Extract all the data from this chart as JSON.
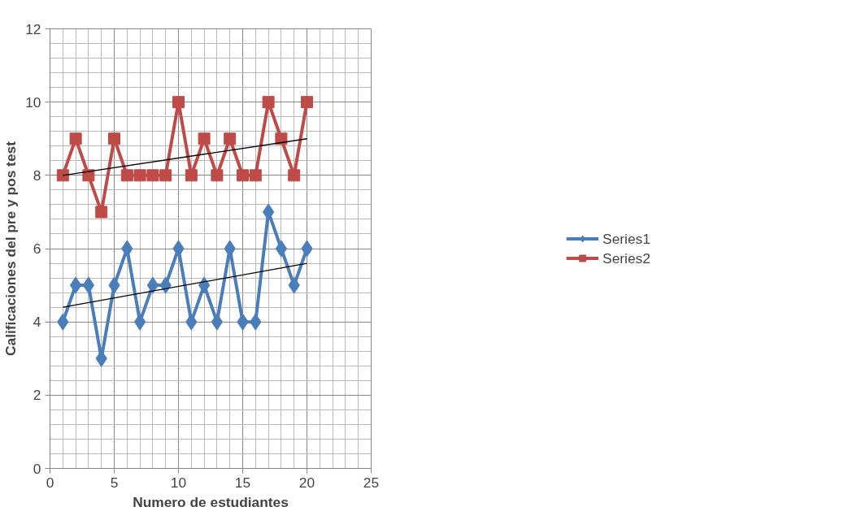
{
  "chart_data": {
    "type": "line",
    "xlabel": "Numero de estudiantes",
    "ylabel": "Calificaciones del pre y pos test",
    "xlim": [
      0,
      25
    ],
    "xticks": [
      0,
      5,
      10,
      15,
      20,
      25
    ],
    "ylim": [
      0,
      12
    ],
    "yticks": [
      0,
      2,
      4,
      6,
      8,
      10,
      12
    ],
    "grid": true,
    "legend": "right",
    "series": [
      {
        "name": "Series1",
        "color": "#4a7ebb",
        "marker": "diamond",
        "x": [
          1,
          2,
          3,
          4,
          5,
          6,
          7,
          8,
          9,
          10,
          11,
          12,
          13,
          14,
          15,
          16,
          17,
          18,
          19,
          20
        ],
        "values": [
          4,
          5,
          5,
          3,
          5,
          6,
          4,
          5,
          5,
          6,
          4,
          5,
          4,
          6,
          4,
          4,
          7,
          6,
          5,
          6
        ]
      },
      {
        "name": "Series2",
        "color": "#be4b48",
        "marker": "square",
        "x": [
          1,
          2,
          3,
          4,
          5,
          6,
          7,
          8,
          9,
          10,
          11,
          12,
          13,
          14,
          15,
          16,
          17,
          18,
          19,
          20
        ],
        "values": [
          8,
          9,
          8,
          7,
          9,
          8,
          8,
          8,
          8,
          10,
          8,
          9,
          8,
          9,
          8,
          8,
          10,
          9,
          8,
          10
        ]
      },
      {
        "color": "#000000",
        "marker": "none",
        "x": [
          1,
          20
        ],
        "values": [
          4.4,
          5.6
        ]
      },
      {
        "color": "#000000",
        "marker": "none",
        "x": [
          1,
          20
        ],
        "values": [
          8.0,
          9.0
        ]
      }
    ]
  }
}
